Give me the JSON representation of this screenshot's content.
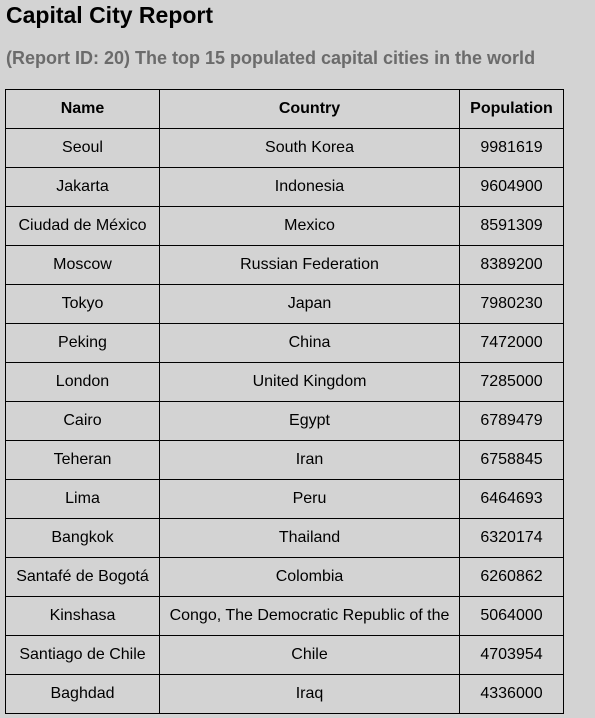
{
  "report": {
    "title": "Capital City Report",
    "subtitle": "(Report ID: 20) The top 15 populated capital cities in the world",
    "columns": [
      "Name",
      "Country",
      "Population"
    ],
    "rows": [
      [
        "Seoul",
        "South Korea",
        "9981619"
      ],
      [
        "Jakarta",
        "Indonesia",
        "9604900"
      ],
      [
        "Ciudad de México",
        "Mexico",
        "8591309"
      ],
      [
        "Moscow",
        "Russian Federation",
        "8389200"
      ],
      [
        "Tokyo",
        "Japan",
        "7980230"
      ],
      [
        "Peking",
        "China",
        "7472000"
      ],
      [
        "London",
        "United Kingdom",
        "7285000"
      ],
      [
        "Cairo",
        "Egypt",
        "6789479"
      ],
      [
        "Teheran",
        "Iran",
        "6758845"
      ],
      [
        "Lima",
        "Peru",
        "6464693"
      ],
      [
        "Bangkok",
        "Thailand",
        "6320174"
      ],
      [
        "Santafé de Bogotá",
        "Colombia",
        "6260862"
      ],
      [
        "Kinshasa",
        "Congo, The Democratic Republic of the",
        "5064000"
      ],
      [
        "Santiago de Chile",
        "Chile",
        "4703954"
      ],
      [
        "Baghdad",
        "Iraq",
        "4336000"
      ]
    ]
  }
}
